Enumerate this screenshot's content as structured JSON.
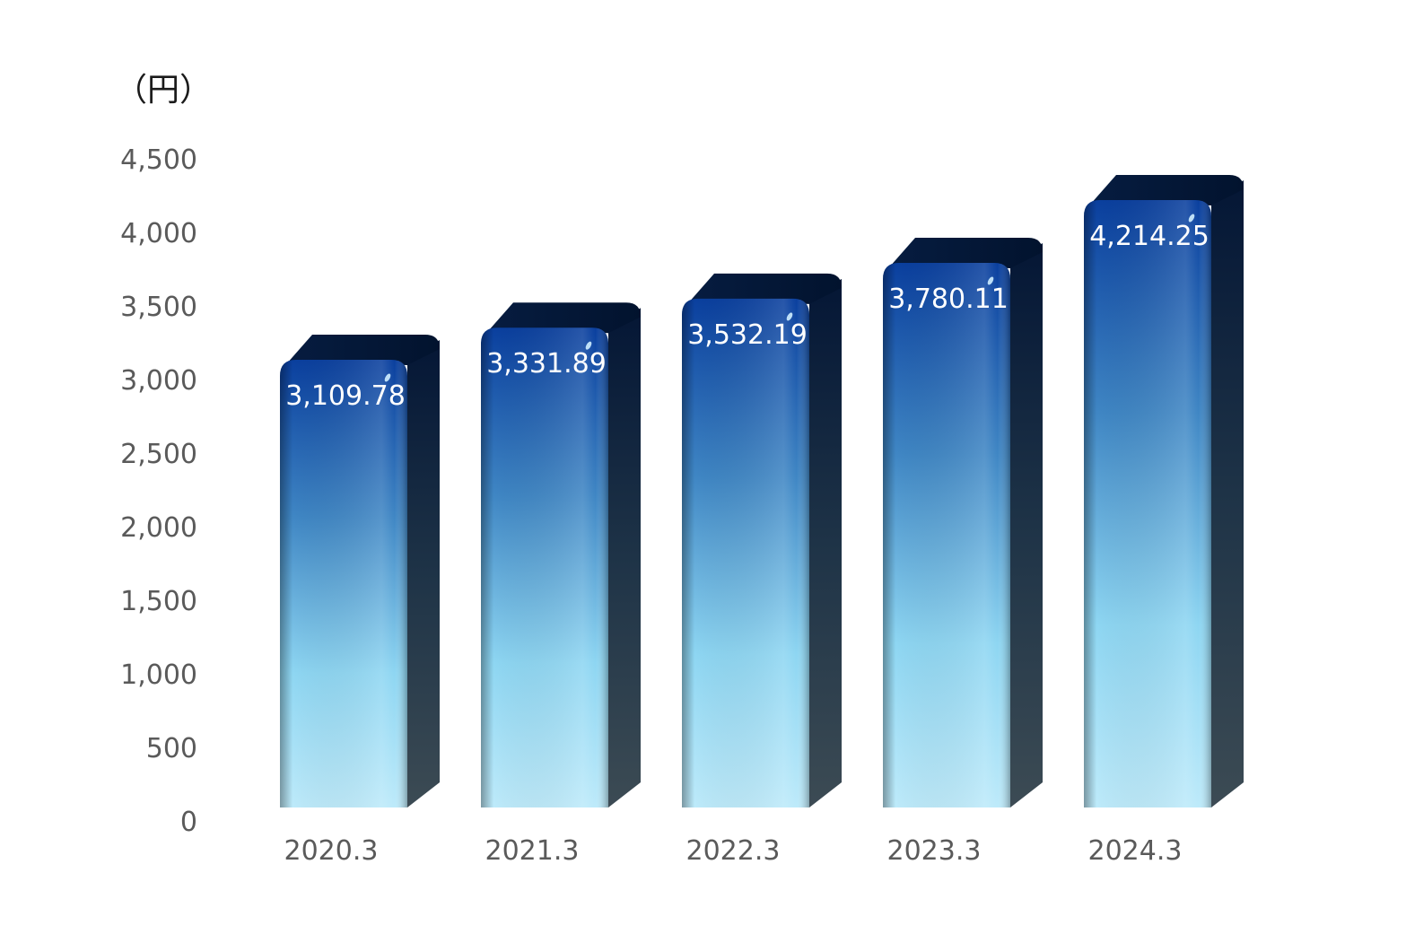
{
  "chart_data": {
    "type": "bar",
    "unit_label": "（円）",
    "categories": [
      "2020.3",
      "2021.3",
      "2022.3",
      "2023.3",
      "2024.3"
    ],
    "values": [
      3109.78,
      3331.89,
      3532.19,
      3780.11,
      4214.25
    ],
    "value_labels": [
      "3,109.78",
      "3,331.89",
      "3,532.19",
      "3,780.11",
      "4,214.25"
    ],
    "y_ticks": [
      0,
      500,
      1000,
      1500,
      2000,
      2500,
      3000,
      3500,
      4000,
      4500
    ],
    "y_tick_labels": [
      "0",
      "500",
      "1,000",
      "1,500",
      "2,000",
      "2,500",
      "3,000",
      "3,500",
      "4,000",
      "4,500"
    ],
    "ylim": [
      0,
      4500
    ],
    "grid": false,
    "legend": "none",
    "colors": {
      "bar_top": "#0a3f9e",
      "bar_bottom": "#b3e8f8",
      "bar_mid": "#5fa6d6",
      "side_top": "#051a3a",
      "side_bottom": "#3a4a52",
      "text_axis": "#5a5a5a",
      "text_label": "#ffffff"
    }
  }
}
